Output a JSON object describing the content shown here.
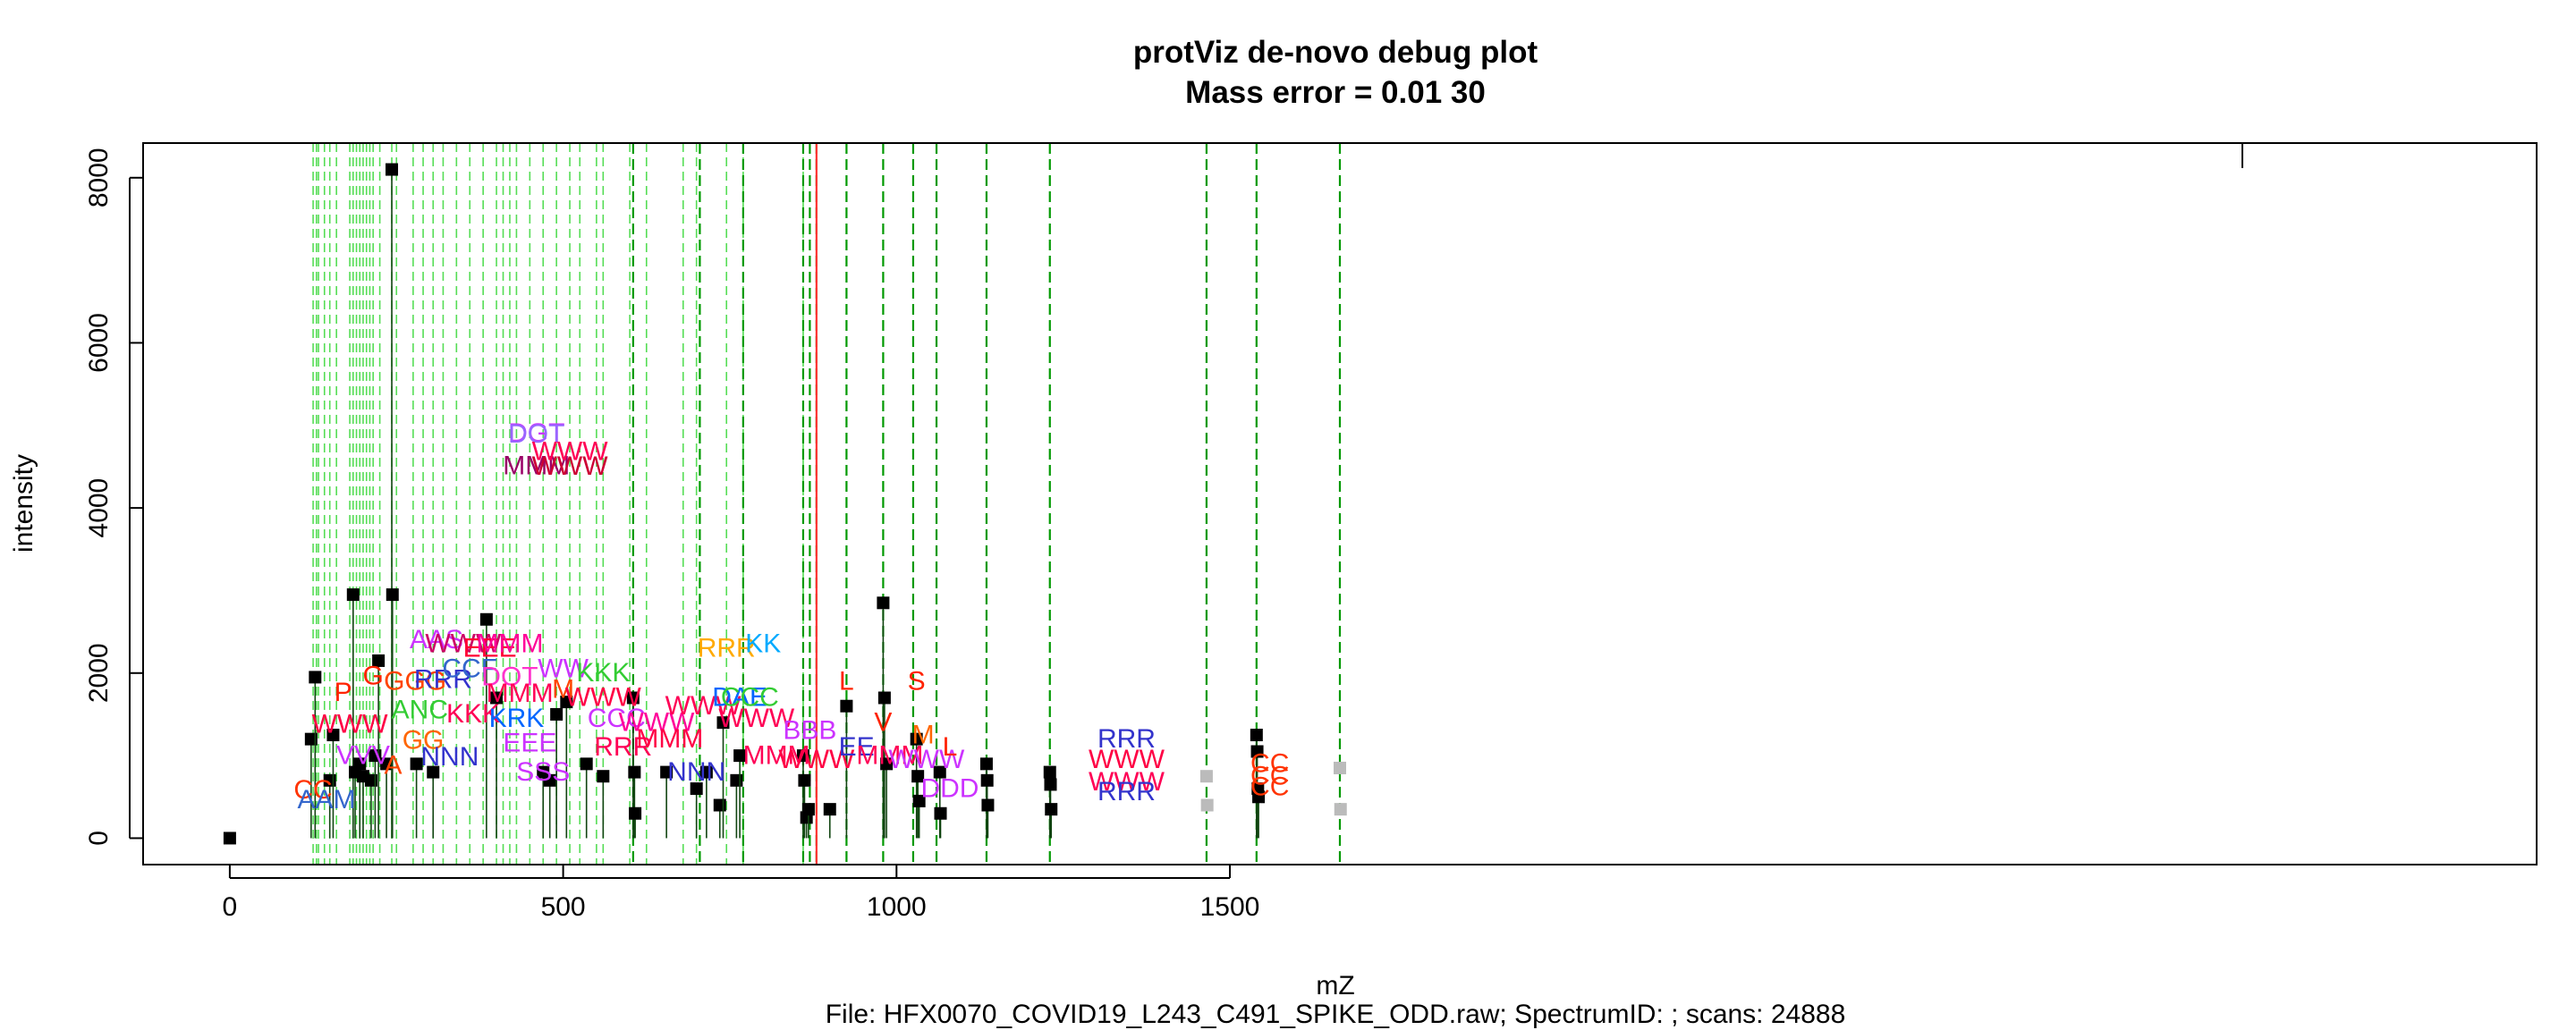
{
  "chart_data": {
    "type": "scatter",
    "title": "protViz de-novo debug plot",
    "subtitle": "Mass error = 0.01 30",
    "xlabel": "mZ",
    "ylabel": "intensity",
    "footer": "File: HFX0070_COVID19_L243_C491_SPIKE_ODD.raw; SpectrumID: ; scans: 24888",
    "xlim": [
      -130,
      3460
    ],
    "ylim": [
      -320,
      8420
    ],
    "x_ticks": [
      0,
      500,
      1000,
      1500
    ],
    "y_ticks": [
      0,
      2000,
      4000,
      6000,
      8000
    ],
    "x_tick_labels": [
      "0",
      "500",
      "1000",
      "1500"
    ],
    "y_tick_labels": [
      "0",
      "2000",
      "4000",
      "6000",
      "8000"
    ],
    "grid": false,
    "precursor_mz": 880,
    "colors": {
      "peak": "#000000",
      "guide_light": "#55dd55",
      "guide_dark": "#009900",
      "precursor": "#ff3333"
    },
    "light_guides": [
      125,
      130,
      133,
      142,
      150,
      160,
      180,
      185,
      190,
      195,
      200,
      205,
      210,
      215,
      225,
      243,
      250,
      275,
      290,
      305,
      320,
      340,
      360,
      380,
      400,
      410,
      420,
      430,
      450,
      470,
      490,
      510,
      525,
      550,
      560,
      600,
      625,
      680,
      700,
      745,
      770,
      860
    ],
    "dark_guides": [
      605,
      705,
      770,
      860,
      870,
      880,
      925,
      980,
      1025,
      1060,
      1135,
      1230,
      1465,
      1540,
      1665
    ],
    "peaks": [
      {
        "x": 0,
        "y": 0
      },
      {
        "x": 122,
        "y": 1200
      },
      {
        "x": 128,
        "y": 1950
      },
      {
        "x": 150,
        "y": 700
      },
      {
        "x": 155,
        "y": 1250
      },
      {
        "x": 185,
        "y": 2950
      },
      {
        "x": 188,
        "y": 800
      },
      {
        "x": 195,
        "y": 900
      },
      {
        "x": 200,
        "y": 750
      },
      {
        "x": 212,
        "y": 700
      },
      {
        "x": 218,
        "y": 1000
      },
      {
        "x": 223,
        "y": 2150
      },
      {
        "x": 235,
        "y": 900
      },
      {
        "x": 243,
        "y": 8100
      },
      {
        "x": 244,
        "y": 2950
      },
      {
        "x": 280,
        "y": 900
      },
      {
        "x": 305,
        "y": 800
      },
      {
        "x": 385,
        "y": 2650
      },
      {
        "x": 400,
        "y": 1700
      },
      {
        "x": 470,
        "y": 800
      },
      {
        "x": 480,
        "y": 700
      },
      {
        "x": 490,
        "y": 1500
      },
      {
        "x": 505,
        "y": 1650
      },
      {
        "x": 535,
        "y": 900
      },
      {
        "x": 560,
        "y": 750
      },
      {
        "x": 605,
        "y": 1700
      },
      {
        "x": 607,
        "y": 800
      },
      {
        "x": 608,
        "y": 300
      },
      {
        "x": 655,
        "y": 800
      },
      {
        "x": 700,
        "y": 600
      },
      {
        "x": 715,
        "y": 800
      },
      {
        "x": 735,
        "y": 400
      },
      {
        "x": 740,
        "y": 1400
      },
      {
        "x": 760,
        "y": 700
      },
      {
        "x": 765,
        "y": 1000
      },
      {
        "x": 860,
        "y": 1000
      },
      {
        "x": 862,
        "y": 700
      },
      {
        "x": 865,
        "y": 250
      },
      {
        "x": 868,
        "y": 350
      },
      {
        "x": 900,
        "y": 350
      },
      {
        "x": 925,
        "y": 1600
      },
      {
        "x": 980,
        "y": 2850
      },
      {
        "x": 982,
        "y": 1700
      },
      {
        "x": 985,
        "y": 900
      },
      {
        "x": 1030,
        "y": 1200
      },
      {
        "x": 1032,
        "y": 750
      },
      {
        "x": 1034,
        "y": 450
      },
      {
        "x": 1065,
        "y": 800
      },
      {
        "x": 1066,
        "y": 300
      },
      {
        "x": 1135,
        "y": 900
      },
      {
        "x": 1136,
        "y": 700
      },
      {
        "x": 1137,
        "y": 400
      },
      {
        "x": 1230,
        "y": 800
      },
      {
        "x": 1231,
        "y": 650
      },
      {
        "x": 1232,
        "y": 350
      },
      {
        "x": 1540,
        "y": 1250
      },
      {
        "x": 1541,
        "y": 1050
      },
      {
        "x": 1542,
        "y": 600
      },
      {
        "x": 1543,
        "y": 500
      }
    ],
    "faded_peaks": [
      {
        "x": 1465,
        "y": 750
      },
      {
        "x": 1466,
        "y": 400
      },
      {
        "x": 1665,
        "y": 850
      },
      {
        "x": 1666,
        "y": 350
      }
    ],
    "annotations": [
      {
        "x": 460,
        "y": 4800,
        "text": "DGT",
        "color": "#cc33ff"
      },
      {
        "x": 460,
        "y": 4790,
        "text": "DOT",
        "color": "#9966ff"
      },
      {
        "x": 460,
        "y": 4410,
        "text": "MMM",
        "color": "#990066"
      },
      {
        "x": 510,
        "y": 4580,
        "text": "WWW",
        "color": "#ff0055"
      },
      {
        "x": 510,
        "y": 4400,
        "text": "WWW",
        "color": "#cc0033"
      },
      {
        "x": 125,
        "y": 480,
        "text": "CC",
        "color": "#ff3300"
      },
      {
        "x": 145,
        "y": 360,
        "text": "AAM",
        "color": "#3366cc"
      },
      {
        "x": 170,
        "y": 1660,
        "text": "P",
        "color": "#ff2200"
      },
      {
        "x": 180,
        "y": 1280,
        "text": "WWW",
        "color": "#ff0044"
      },
      {
        "x": 200,
        "y": 900,
        "text": "VVV",
        "color": "#cc33ff"
      },
      {
        "x": 215,
        "y": 1860,
        "text": "G",
        "color": "#ff2200"
      },
      {
        "x": 245,
        "y": 780,
        "text": "A",
        "color": "#ff4400"
      },
      {
        "x": 278,
        "y": 1800,
        "text": "GGG",
        "color": "#ff4400"
      },
      {
        "x": 285,
        "y": 1450,
        "text": "ANC",
        "color": "#33cc33"
      },
      {
        "x": 290,
        "y": 1080,
        "text": "GG",
        "color": "#ff6600"
      },
      {
        "x": 310,
        "y": 2300,
        "text": "AAS",
        "color": "#cc33ff"
      },
      {
        "x": 320,
        "y": 1820,
        "text": "RRR",
        "color": "#3333cc"
      },
      {
        "x": 350,
        "y": 2250,
        "text": "WWW",
        "color": "#cc0066"
      },
      {
        "x": 360,
        "y": 1950,
        "text": "CCF",
        "color": "#3366cc"
      },
      {
        "x": 365,
        "y": 1400,
        "text": "KKK",
        "color": "#ff0055"
      },
      {
        "x": 390,
        "y": 2200,
        "text": "EEE",
        "color": "#ff0033"
      },
      {
        "x": 330,
        "y": 880,
        "text": "NNN",
        "color": "#3333cc"
      },
      {
        "x": 420,
        "y": 2250,
        "text": "MMM",
        "color": "#ff0099"
      },
      {
        "x": 420,
        "y": 1850,
        "text": "DOT",
        "color": "#ff33cc"
      },
      {
        "x": 430,
        "y": 1350,
        "text": "KRK",
        "color": "#0066ff"
      },
      {
        "x": 435,
        "y": 1650,
        "text": "MMM",
        "color": "#ff0055"
      },
      {
        "x": 450,
        "y": 1050,
        "text": "EEE",
        "color": "#cc33ff"
      },
      {
        "x": 500,
        "y": 1950,
        "text": "WW",
        "color": "#cc33ff"
      },
      {
        "x": 500,
        "y": 1700,
        "text": "M",
        "color": "#ff4400"
      },
      {
        "x": 470,
        "y": 700,
        "text": "SSS",
        "color": "#cc33ff"
      },
      {
        "x": 560,
        "y": 1900,
        "text": "KKK",
        "color": "#33cc33"
      },
      {
        "x": 560,
        "y": 1600,
        "text": "WWW",
        "color": "#ff0044"
      },
      {
        "x": 580,
        "y": 1350,
        "text": "CCC",
        "color": "#cc33ff"
      },
      {
        "x": 590,
        "y": 1000,
        "text": "RRR",
        "color": "#ff0055"
      },
      {
        "x": 640,
        "y": 1300,
        "text": "WWW",
        "color": "#ff0099"
      },
      {
        "x": 660,
        "y": 1100,
        "text": "MMM",
        "color": "#ff0044"
      },
      {
        "x": 700,
        "y": 700,
        "text": "NNN",
        "color": "#3333cc"
      },
      {
        "x": 710,
        "y": 1500,
        "text": "WWW",
        "color": "#ff0055"
      },
      {
        "x": 745,
        "y": 2200,
        "text": "RRR",
        "color": "#ffaa00"
      },
      {
        "x": 765,
        "y": 1600,
        "text": "DAE",
        "color": "#0066ff"
      },
      {
        "x": 780,
        "y": 1600,
        "text": "CCC",
        "color": "#33cc33"
      },
      {
        "x": 800,
        "y": 2250,
        "text": "KK",
        "color": "#00aaff"
      },
      {
        "x": 790,
        "y": 1350,
        "text": "WWW",
        "color": "#ff0055"
      },
      {
        "x": 820,
        "y": 900,
        "text": "MMM",
        "color": "#ff0055"
      },
      {
        "x": 870,
        "y": 1200,
        "text": "BBB",
        "color": "#cc33ff"
      },
      {
        "x": 880,
        "y": 850,
        "text": "WWW",
        "color": "#ff0044"
      },
      {
        "x": 925,
        "y": 1800,
        "text": "L",
        "color": "#ff2200"
      },
      {
        "x": 940,
        "y": 1000,
        "text": "EE",
        "color": "#3333cc"
      },
      {
        "x": 980,
        "y": 1300,
        "text": "V",
        "color": "#ff2200"
      },
      {
        "x": 990,
        "y": 900,
        "text": "MMM",
        "color": "#ff0055"
      },
      {
        "x": 1030,
        "y": 1800,
        "text": "S",
        "color": "#ff2200"
      },
      {
        "x": 1040,
        "y": 1150,
        "text": "M",
        "color": "#ff6600"
      },
      {
        "x": 1045,
        "y": 850,
        "text": "WWW",
        "color": "#cc33ff"
      },
      {
        "x": 1080,
        "y": 1000,
        "text": "L",
        "color": "#ff2200"
      },
      {
        "x": 1080,
        "y": 500,
        "text": "DDD",
        "color": "#cc33ff"
      },
      {
        "x": 1345,
        "y": 1100,
        "text": "RRR",
        "color": "#3333cc"
      },
      {
        "x": 1345,
        "y": 850,
        "text": "WWW",
        "color": "#ff0044"
      },
      {
        "x": 1345,
        "y": 580,
        "text": "WWW",
        "color": "#ff0055"
      },
      {
        "x": 1345,
        "y": 460,
        "text": "RRR",
        "color": "#3333cc"
      },
      {
        "x": 1560,
        "y": 800,
        "text": "CC",
        "color": "#ff3300"
      },
      {
        "x": 1560,
        "y": 650,
        "text": "CC",
        "color": "#ff3300"
      },
      {
        "x": 1560,
        "y": 520,
        "text": "CC",
        "color": "#ff3300"
      }
    ]
  }
}
